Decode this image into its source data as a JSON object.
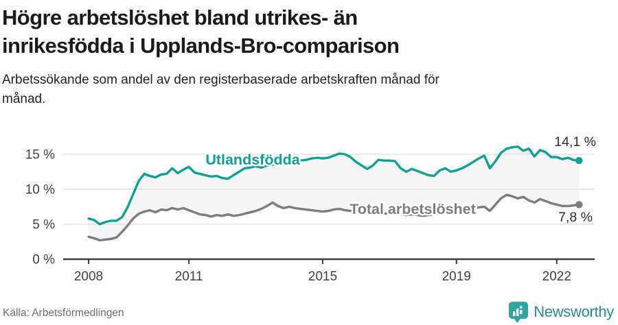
{
  "chart_data": {
    "type": "line",
    "title": "Högre arbetslöshet bland utrikes- än inrikesfödda i Upplands-Bro-comparison",
    "subtitle": "Arbetssökande som andel av den registerbaserade arbetskraften månad för månad.",
    "source": "Källa: Arbetsförmedlingen",
    "grid": true,
    "legend_position": "inline-labels",
    "fill_between_color": "#f5f5f5",
    "axis_color": "#3c3c3c",
    "gridline_color": "#dcdcdc",
    "tick_label_color": "#424242",
    "end_label_color": "#2d2d2d",
    "xlim": [
      2007.24,
      2023.05
    ],
    "ylim": [
      0,
      16.5
    ],
    "x_start": 2008,
    "points_per_year": 6,
    "x_ticks": [
      {
        "value": 2008,
        "label": "2008"
      },
      {
        "value": 2011,
        "label": "2011"
      },
      {
        "value": 2015,
        "label": "2015"
      },
      {
        "value": 2019,
        "label": "2019"
      },
      {
        "value": 2022,
        "label": "2022"
      }
    ],
    "y_ticks": [
      {
        "value": 0,
        "label": "0 %"
      },
      {
        "value": 5,
        "label": "5 %"
      },
      {
        "value": 10,
        "label": "10 %"
      },
      {
        "value": 15,
        "label": "15 %"
      }
    ],
    "series": [
      {
        "name": "Utlandsfödda",
        "color": "#10a095",
        "end_label": "14,1 %",
        "end_value": 14.1,
        "values": [
          5.8,
          5.6,
          5.0,
          5.3,
          5.5,
          5.5,
          6.0,
          7.4,
          9.3,
          11.2,
          12.2,
          11.9,
          11.7,
          12.1,
          12.2,
          13.0,
          12.3,
          12.8,
          13.2,
          12.4,
          12.2,
          12.0,
          11.8,
          11.9,
          11.6,
          11.5,
          12.0,
          12.5,
          13.0,
          13.1,
          13.3,
          13.1,
          13.4,
          13.5,
          13.6,
          13.5,
          13.8,
          14.0,
          14.1,
          14.2,
          14.4,
          14.5,
          14.4,
          14.5,
          14.8,
          15.1,
          15.0,
          14.6,
          13.9,
          13.4,
          12.9,
          13.4,
          14.2,
          14.1,
          14.1,
          14.0,
          13.0,
          12.5,
          12.9,
          12.6,
          12.3,
          12.0,
          11.9,
          12.7,
          13.0,
          12.5,
          12.7,
          13.0,
          13.4,
          13.9,
          14.4,
          14.8,
          13.0,
          14.0,
          15.2,
          15.8,
          16.0,
          16.1,
          15.5,
          15.8,
          14.7,
          15.6,
          15.3,
          14.6,
          14.6,
          14.3,
          14.5,
          14.2,
          14.1
        ]
      },
      {
        "name": "Total arbetslöshet",
        "color": "#7d7d7d",
        "end_label": "7,8 %",
        "end_value": 7.8,
        "values": [
          3.2,
          3.0,
          2.7,
          2.8,
          2.9,
          3.1,
          3.9,
          4.8,
          5.8,
          6.5,
          6.8,
          7.0,
          6.7,
          7.1,
          7.0,
          7.3,
          7.1,
          7.3,
          7.0,
          6.7,
          6.4,
          6.3,
          6.1,
          6.3,
          6.2,
          6.4,
          6.2,
          6.3,
          6.5,
          6.7,
          6.9,
          7.2,
          7.6,
          8.1,
          7.6,
          7.3,
          7.5,
          7.3,
          7.2,
          7.1,
          7.0,
          6.9,
          6.8,
          6.9,
          7.1,
          7.2,
          7.0,
          6.9,
          6.8,
          6.7,
          6.6,
          6.7,
          6.6,
          6.5,
          6.6,
          6.5,
          6.4,
          6.3,
          6.4,
          6.3,
          6.2,
          6.3,
          6.4,
          6.5,
          6.6,
          6.5,
          6.7,
          6.9,
          7.1,
          7.2,
          7.4,
          7.5,
          6.9,
          7.8,
          8.7,
          9.2,
          9.0,
          8.7,
          8.9,
          8.4,
          8.1,
          8.6,
          8.3,
          8.0,
          7.8,
          7.6,
          7.6,
          7.7,
          7.8
        ]
      }
    ]
  },
  "footer": {
    "brand": "Newsworthy",
    "brand_color": "#2b8a8c",
    "brand_icon_color": "#31a6a0"
  }
}
